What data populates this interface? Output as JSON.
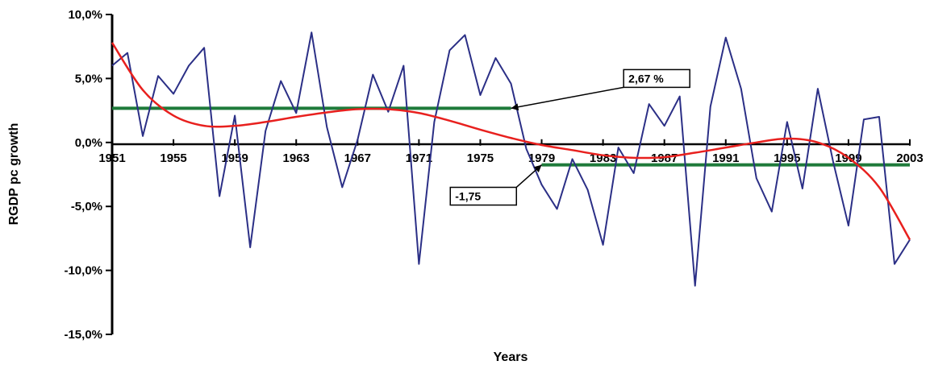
{
  "chart_data": {
    "type": "line",
    "title": "",
    "xlabel": "Years",
    "ylabel": "RGDP pc growth",
    "xlim": [
      1951,
      2003
    ],
    "ylim": [
      -15,
      10
    ],
    "x_ticks": [
      1951,
      1955,
      1959,
      1963,
      1967,
      1971,
      1975,
      1979,
      1983,
      1987,
      1991,
      1995,
      1999,
      2003
    ],
    "x_tick_labels": [
      "1951",
      "1955",
      "1959",
      "1963",
      "1967",
      "1971",
      "1975",
      "1979",
      "1983",
      "1987",
      "1991",
      "1995",
      "1999",
      "2003"
    ],
    "y_ticks": [
      10,
      5,
      0,
      -5,
      -10,
      -15
    ],
    "y_tick_labels": [
      "10,0%",
      "5,0%",
      "0,0%",
      "-5,0%",
      "-10,0%",
      "-15,0%"
    ],
    "grid": false,
    "legend": "none",
    "series": [
      {
        "kind": "growth",
        "color": "#2b2f86",
        "x": [
          1951,
          1952,
          1953,
          1954,
          1955,
          1956,
          1957,
          1958,
          1959,
          1960,
          1961,
          1962,
          1963,
          1964,
          1965,
          1966,
          1967,
          1968,
          1969,
          1970,
          1971,
          1972,
          1973,
          1974,
          1975,
          1976,
          1977,
          1978,
          1979,
          1980,
          1981,
          1982,
          1983,
          1984,
          1985,
          1986,
          1987,
          1988,
          1989,
          1990,
          1991,
          1992,
          1993,
          1994,
          1995,
          1996,
          1997,
          1998,
          1999,
          2000,
          2001,
          2002,
          2003
        ],
        "values": [
          6.0,
          7.0,
          0.5,
          5.2,
          3.8,
          6.0,
          7.4,
          -4.2,
          2.1,
          -8.2,
          0.9,
          4.8,
          2.3,
          8.6,
          1.2,
          -3.5,
          0.2,
          5.3,
          2.4,
          6.0,
          -9.5,
          1.6,
          7.2,
          8.4,
          3.7,
          6.6,
          4.6,
          -0.5,
          -3.3,
          -5.2,
          -1.3,
          -3.7,
          -8.0,
          -0.4,
          -2.4,
          3.0,
          1.3,
          3.6,
          -11.2,
          2.8,
          8.2,
          4.2,
          -2.8,
          -5.4,
          1.6,
          -3.6,
          4.2,
          -1.5,
          -6.5,
          1.8,
          2.0,
          -9.5,
          -7.6
        ]
      },
      {
        "kind": "trend",
        "color": "#e8201e",
        "x": [
          1951,
          1953,
          1955,
          1957,
          1959,
          1961,
          1963,
          1965,
          1967,
          1969,
          1971,
          1973,
          1975,
          1977,
          1979,
          1981,
          1983,
          1985,
          1987,
          1989,
          1991,
          1993,
          1995,
          1997,
          1999,
          2001,
          2003
        ],
        "values": [
          7.8,
          4.1,
          2.1,
          1.3,
          1.3,
          1.6,
          2.0,
          2.35,
          2.6,
          2.6,
          2.3,
          1.7,
          1.0,
          0.35,
          -0.2,
          -0.6,
          -1.0,
          -1.2,
          -1.15,
          -0.8,
          -0.4,
          0.0,
          0.3,
          0.0,
          -1.2,
          -3.5,
          -7.6
        ]
      },
      {
        "kind": "mean",
        "color": "#1e7a3a",
        "x": [
          1951,
          1977
        ],
        "values": [
          2.67,
          2.67
        ]
      },
      {
        "kind": "mean",
        "color": "#1e7a3a",
        "x": [
          1979,
          2003
        ],
        "values": [
          -1.75,
          -1.75
        ]
      }
    ],
    "annotations": [
      {
        "text": "2,67 %",
        "arrow_to": [
          1977,
          2.67
        ],
        "label_at": [
          1986.5,
          5.0
        ]
      },
      {
        "text": "-1,75",
        "arrow_to": [
          1979,
          -1.75
        ],
        "label_at": [
          1975.2,
          -4.2
        ]
      }
    ]
  }
}
